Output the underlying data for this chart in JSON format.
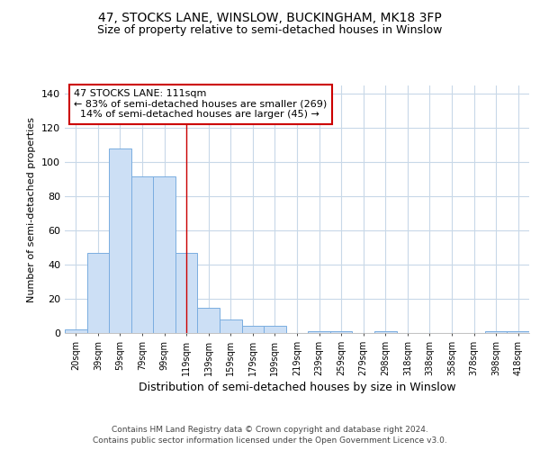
{
  "title": "47, STOCKS LANE, WINSLOW, BUCKINGHAM, MK18 3FP",
  "subtitle": "Size of property relative to semi-detached houses in Winslow",
  "xlabel": "Distribution of semi-detached houses by size in Winslow",
  "ylabel": "Number of semi-detached properties",
  "footer1": "Contains HM Land Registry data © Crown copyright and database right 2024.",
  "footer2": "Contains public sector information licensed under the Open Government Licence v3.0.",
  "annotation_title": "47 STOCKS LANE: 111sqm",
  "annotation_line1": "← 83% of semi-detached houses are smaller (269)",
  "annotation_line2": "  14% of semi-detached houses are larger (45) →",
  "bar_labels": [
    "20sqm",
    "39sqm",
    "59sqm",
    "79sqm",
    "99sqm",
    "119sqm",
    "139sqm",
    "159sqm",
    "179sqm",
    "199sqm",
    "219sqm",
    "239sqm",
    "259sqm",
    "279sqm",
    "298sqm",
    "318sqm",
    "338sqm",
    "358sqm",
    "378sqm",
    "398sqm",
    "418sqm"
  ],
  "bar_values": [
    2,
    47,
    108,
    92,
    92,
    47,
    15,
    8,
    4,
    4,
    0,
    1,
    1,
    0,
    1,
    0,
    0,
    0,
    0,
    1,
    1
  ],
  "bar_color": "#ccdff5",
  "bar_edge_color": "#7aade0",
  "vline_x": 5,
  "vline_color": "#cc0000",
  "annotation_box_color": "#ffffff",
  "annotation_box_edge": "#cc0000",
  "ylim": [
    0,
    145
  ],
  "yticks": [
    0,
    20,
    40,
    60,
    80,
    100,
    120,
    140
  ],
  "background_color": "#ffffff",
  "grid_color": "#c8d8e8"
}
